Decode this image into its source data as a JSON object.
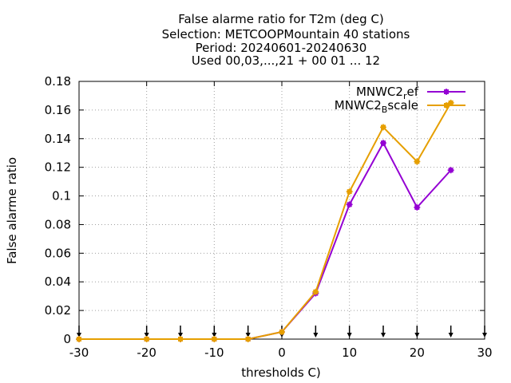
{
  "chart_data": {
    "type": "line",
    "title_lines": [
      "False alarme ratio  for T2m (deg C)",
      "Selection: METCOOPMountain     40 stations",
      "Period: 20240601-20240630",
      "Used 00,03,...,21 + 00 01 ... 12"
    ],
    "xlabel": "thresholds C)",
    "ylabel": "False alarme ratio",
    "xlim": [
      -30,
      30
    ],
    "ylim": [
      0,
      0.18
    ],
    "xticks": [
      -30,
      -20,
      -10,
      0,
      10,
      20,
      30
    ],
    "yticks": [
      0,
      0.02,
      0.04,
      0.06,
      0.08,
      0.1,
      0.12,
      0.14,
      0.16,
      0.18
    ],
    "xtick_labels": [
      "-30",
      "-20",
      "-10",
      "0",
      "10",
      "20",
      "30"
    ],
    "ytick_labels": [
      "0",
      "0.02",
      "0.04",
      "0.06",
      "0.08",
      "0.1",
      "0.12",
      "0.14",
      "0.16",
      "0.18"
    ],
    "grid": true,
    "legend_position": "top-right",
    "threshold_arrows_x": [
      -30,
      -20,
      -15,
      -10,
      -5,
      0,
      5,
      10,
      15,
      20,
      25,
      30
    ],
    "x": [
      -30,
      -20,
      -15,
      -10,
      -5,
      0,
      5,
      10,
      15,
      20,
      25
    ],
    "series": [
      {
        "legend_main": "MNWC2",
        "legend_sub": "r",
        "legend_tail": "ef",
        "color": "#9400d3",
        "values": [
          0,
          0,
          0,
          0,
          0,
          0.005,
          0.032,
          0.094,
          0.137,
          0.092,
          0.118
        ]
      },
      {
        "legend_main": "MNWC2",
        "legend_sub": "B",
        "legend_tail": "scale",
        "color": "#e69f00",
        "values": [
          0,
          0,
          0,
          0,
          0,
          0.005,
          0.033,
          0.103,
          0.148,
          0.124,
          0.165
        ]
      }
    ]
  }
}
